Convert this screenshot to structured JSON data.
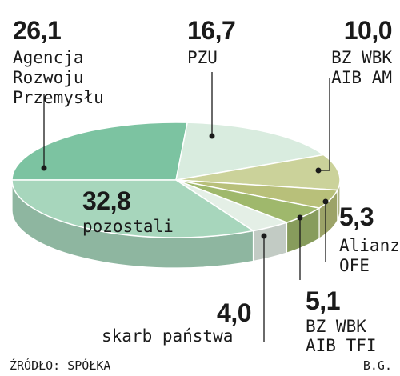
{
  "chart_data": {
    "type": "pie",
    "unit": "%",
    "slices": [
      {
        "value": "26,1",
        "label": "Agencja\nRozwoju\nPrzemysłu",
        "color": "#7cc3a1"
      },
      {
        "value": "16,7",
        "label": "PZU",
        "color": "#d9ecdf"
      },
      {
        "value": "10,0",
        "label": "BZ WBK\nAIB AM",
        "color": "#cbd29a"
      },
      {
        "value": "5,3",
        "label": "Alianz\nOFE",
        "color": "#b8c07a"
      },
      {
        "value": "5,1",
        "label": "BZ WBK\nAIB TFI",
        "color": "#9fb86c"
      },
      {
        "value": "4,0",
        "label": "skarb państwa",
        "color": "#e4efe6"
      },
      {
        "value": "32,8",
        "label": "pozostali",
        "color": "#a7d6bc"
      }
    ]
  },
  "footer": {
    "source": "ŹRÓDŁO: SPÓŁKA",
    "author": "B.G."
  }
}
